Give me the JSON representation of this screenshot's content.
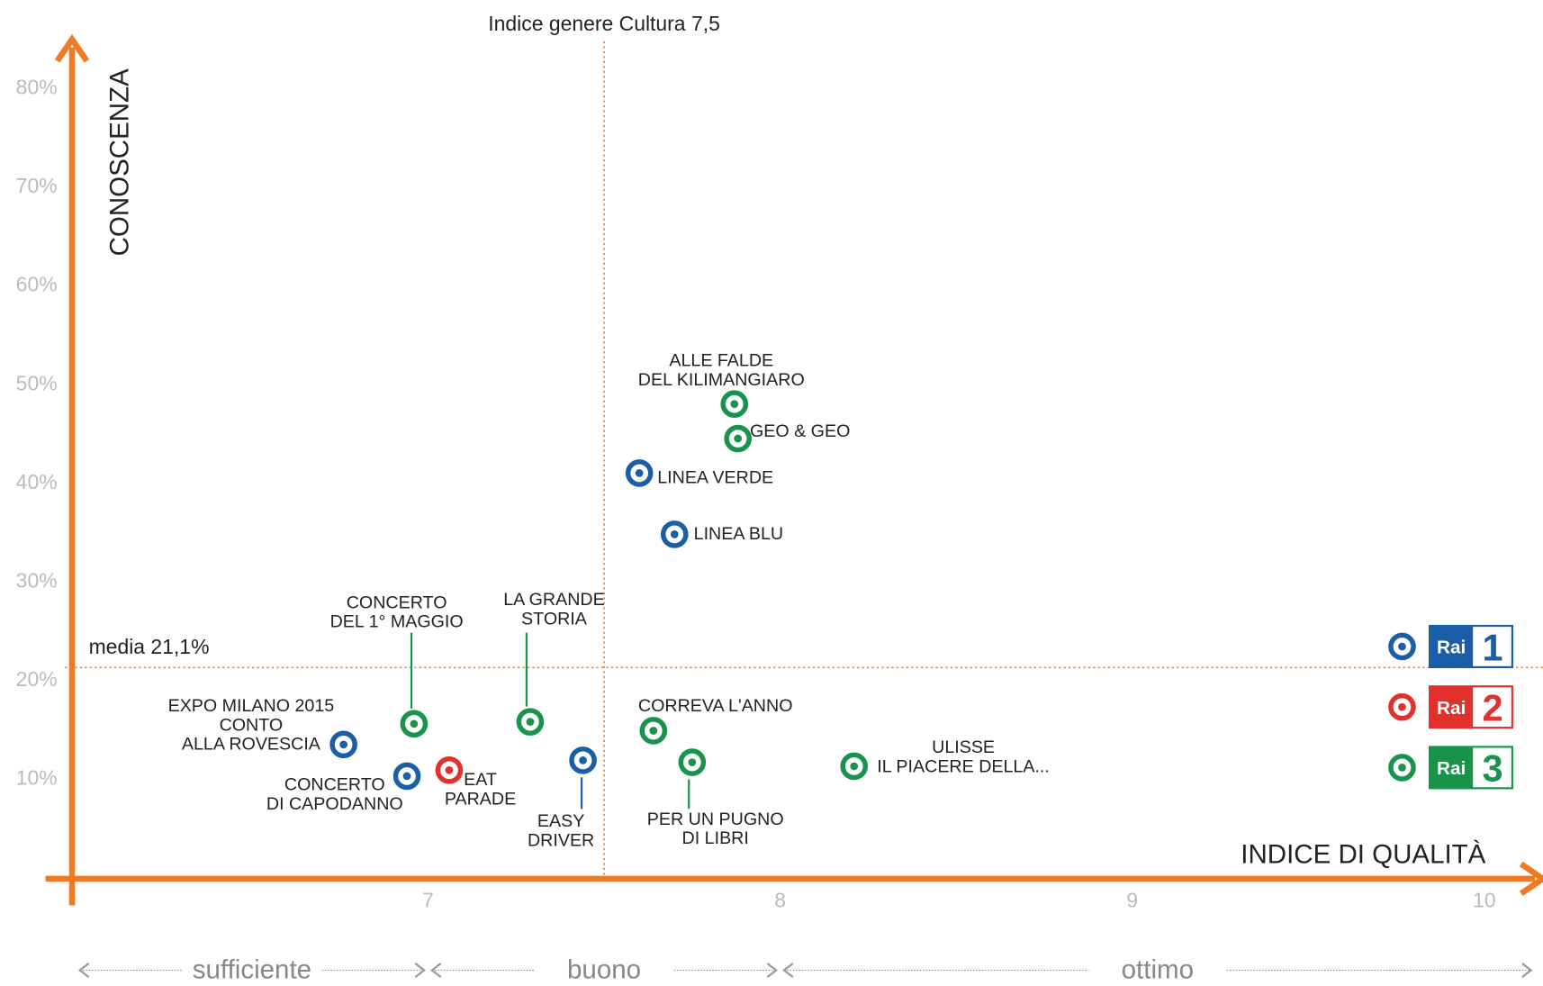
{
  "chart_data": {
    "type": "scatter",
    "x_label": "INDICE DI QUALITÀ",
    "y_label": "CONOSCENZA",
    "xlim": [
      6,
      10.18
    ],
    "ylim": [
      0,
      84.5
    ],
    "xticks": [
      7,
      8,
      9,
      10
    ],
    "yticks": [
      {
        "value": 10,
        "label": "10%"
      },
      {
        "value": 20,
        "label": "20%"
      },
      {
        "value": 30,
        "label": "30%"
      },
      {
        "value": 40,
        "label": "40%"
      },
      {
        "value": 50,
        "label": "50%"
      },
      {
        "value": 60,
        "label": "60%"
      },
      {
        "value": 70,
        "label": "70%"
      },
      {
        "value": 80,
        "label": "80%"
      }
    ],
    "axis_color": "#f07a22",
    "reference_lines": [
      {
        "axis": "x",
        "value": 7.5,
        "label": "Indice genere Cultura 7,5"
      },
      {
        "axis": "y",
        "value": 21.1,
        "label": "media 21,1%"
      }
    ],
    "bands": [
      {
        "label": "sufficiente",
        "from": 6,
        "to": 7
      },
      {
        "label": "buono",
        "from": 7,
        "to": 8
      },
      {
        "label": "ottimo",
        "from": 8,
        "to": 10.18
      }
    ],
    "series": [
      {
        "logo": "Rai",
        "number": "1",
        "color": "#1b5ea8",
        "labels": [
          [
            "LINEA VERDE"
          ],
          [
            "LINEA BLU"
          ],
          [
            "EXPO MILANO 2015",
            "CONTO",
            "ALLA ROVESCIA"
          ],
          [
            "CONCERTO",
            "DI CAPODANNO"
          ],
          [
            "EASY",
            "DRIVER"
          ]
        ],
        "x": [
          7.6,
          7.7,
          6.76,
          6.94,
          7.44
        ],
        "values": [
          40.8,
          34.6,
          13.3,
          10.1,
          11.7
        ]
      },
      {
        "logo": "Rai",
        "number": "2",
        "color": "#e2312d",
        "labels": [
          [
            "EAT",
            "PARADE"
          ]
        ],
        "x": [
          7.06
        ],
        "values": [
          10.7
        ]
      },
      {
        "logo": "Rai",
        "number": "3",
        "color": "#17944a",
        "labels": [
          [
            "ALLE FALDE",
            "DEL KILIMANGIARO"
          ],
          [
            "GEO & GEO"
          ],
          [
            "CONCERTO",
            "DEL 1° MAGGIO"
          ],
          [
            "LA GRANDE",
            "STORIA"
          ],
          [
            "CORREVA L'ANNO"
          ],
          [
            "PER UN PUGNO",
            "DI LIBRI"
          ],
          [
            "ULISSE",
            "IL PIACERE DELLA..."
          ]
        ],
        "x": [
          7.87,
          7.88,
          6.96,
          7.29,
          7.64,
          7.75,
          8.21
        ],
        "values": [
          47.8,
          44.3,
          15.4,
          15.6,
          14.7,
          11.5,
          11.1
        ]
      }
    ]
  }
}
